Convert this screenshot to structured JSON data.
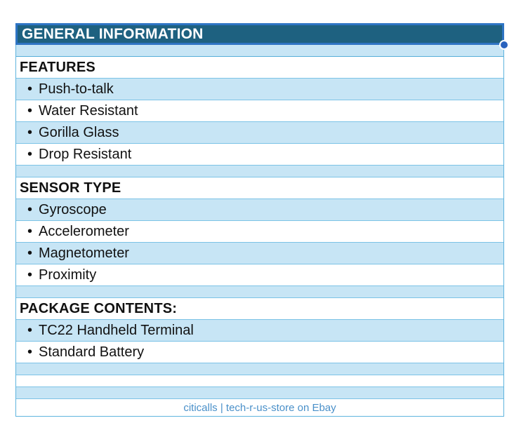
{
  "colors": {
    "header_fill": "#1e6180",
    "header_border": "#2e74c4",
    "row_alt_blue": "#c7e5f5",
    "row_white": "#ffffff",
    "grid_line": "#7cc3e6",
    "outer_line": "#5fb4de",
    "footer_text": "#4a90c9",
    "handle_dot": "#2a63be",
    "header_text": "#ffffff",
    "body_text": "#111111"
  },
  "table": {
    "title": "GENERAL INFORMATION",
    "bullet": "•",
    "sections": [
      {
        "heading": "FEATURES",
        "items": [
          "Push-to-talk",
          "Water Resistant",
          "Gorilla Glass",
          "Drop Resistant"
        ]
      },
      {
        "heading": "SENSOR TYPE",
        "items": [
          "Gyroscope",
          "Accelerometer",
          "Magnetometer",
          "Proximity"
        ]
      },
      {
        "heading": "PACKAGE CONTENTS:",
        "items": [
          "TC22 Handheld Terminal",
          "Standard Battery"
        ]
      }
    ],
    "footer": "citicalls | tech-r-us-store on Ebay"
  }
}
